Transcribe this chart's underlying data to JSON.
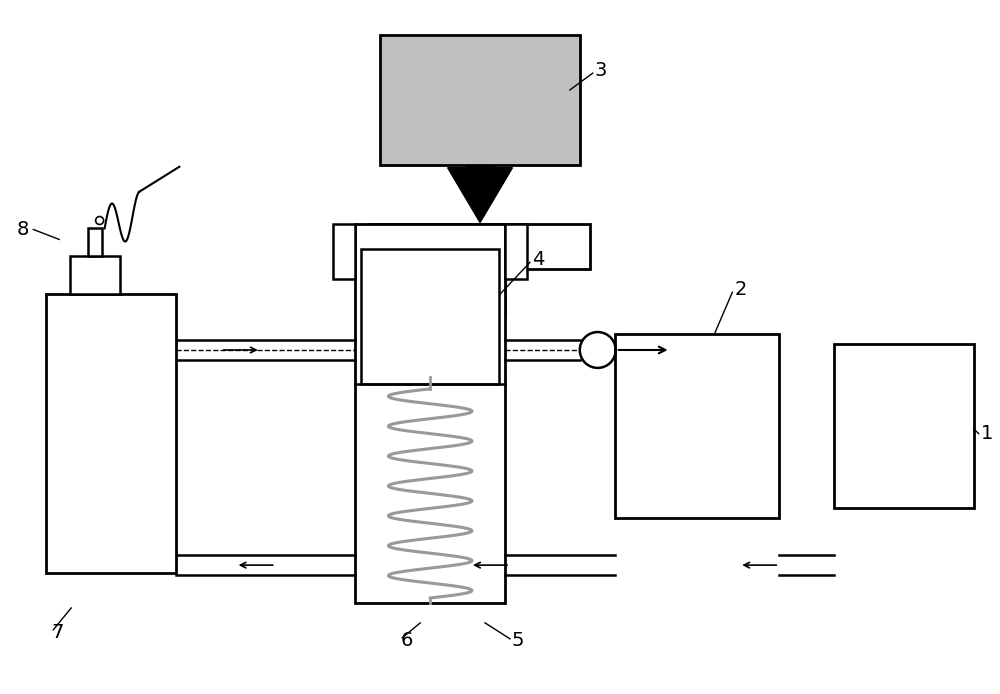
{
  "bg_color": "#ffffff",
  "line_color": "#000000",
  "light_gray": "#c0c0c0",
  "spring_gray": "#999999",
  "lw_main": 1.8,
  "lw_thick": 2.0,
  "label_fontsize": 14,
  "figsize": [
    10.0,
    6.94
  ],
  "dpi": 100
}
